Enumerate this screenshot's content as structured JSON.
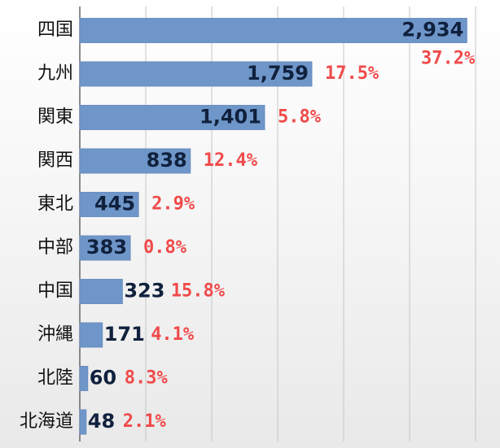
{
  "colors": {
    "bar": "#6f96c9",
    "bar_stroke": "#6c8fc0",
    "value_text": "#10213d",
    "pct_text": "#f04a4a",
    "label_text": "#111111",
    "grid": "#c6c6c6",
    "axis": "#666666"
  },
  "chart_data": {
    "type": "bar",
    "orientation": "horizontal",
    "categories": [
      "四国",
      "九州",
      "関東",
      "関西",
      "東北",
      "中部",
      "中国",
      "沖縄",
      "北陸",
      "北海道"
    ],
    "values": [
      2934,
      1759,
      1401,
      838,
      445,
      383,
      323,
      171,
      60,
      48
    ],
    "value_labels": [
      "2,934",
      "1,759",
      "1,401",
      "838",
      "445",
      "383",
      "323",
      "171",
      "60",
      "48"
    ],
    "percent_labels": [
      "37.2%",
      "17.5%",
      "5.8%",
      "12.4%",
      "2.9%",
      "0.8%",
      "15.8%",
      "4.1%",
      "8.3%",
      "2.1%"
    ],
    "xlim": [
      0,
      3000
    ],
    "grid": true,
    "legend": "none"
  }
}
